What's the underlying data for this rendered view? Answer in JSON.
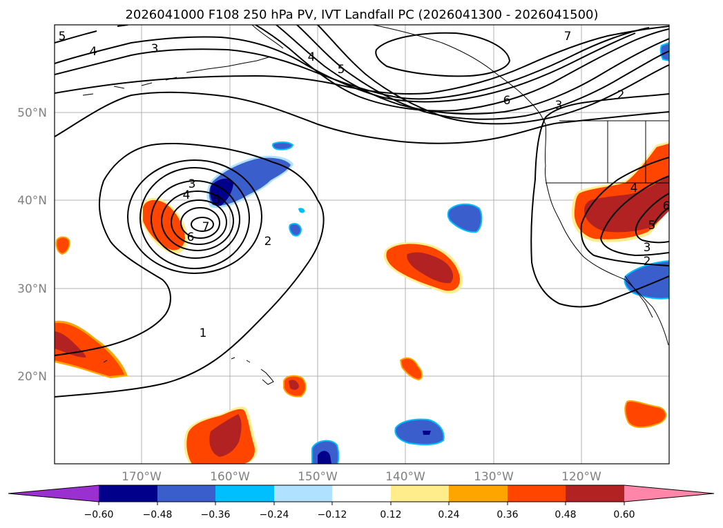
{
  "title": "2026041000 F108 250 hPa PV, IVT Landfall PC (2026041300 - 2026041500)",
  "lat_labels": [
    "50°N",
    "40°N",
    "30°N",
    "20°N"
  ],
  "lon_labels": [
    "170°W",
    "160°W",
    "150°W",
    "140°W",
    "130°W",
    "120°W"
  ],
  "colorbar": {
    "ticks": [
      "−0.60",
      "−0.48",
      "−0.36",
      "−0.24",
      "−0.12",
      "0.12",
      "0.24",
      "0.36",
      "0.48",
      "0.60"
    ],
    "colors": [
      "#9b30d0",
      "#00008b",
      "#3a5fcd",
      "#00bfff",
      "#b0e2ff",
      "#ffffff",
      "#ffec8b",
      "#ffa500",
      "#ff4500",
      "#b22222",
      "#ff86a8"
    ]
  },
  "contour_labels": [
    "5",
    "4",
    "3",
    "4",
    "5",
    "6",
    "7",
    "3",
    "2",
    "3",
    "4",
    "5",
    "6",
    "7",
    "2",
    "1",
    "4",
    "5",
    "3",
    "2",
    "6"
  ]
}
